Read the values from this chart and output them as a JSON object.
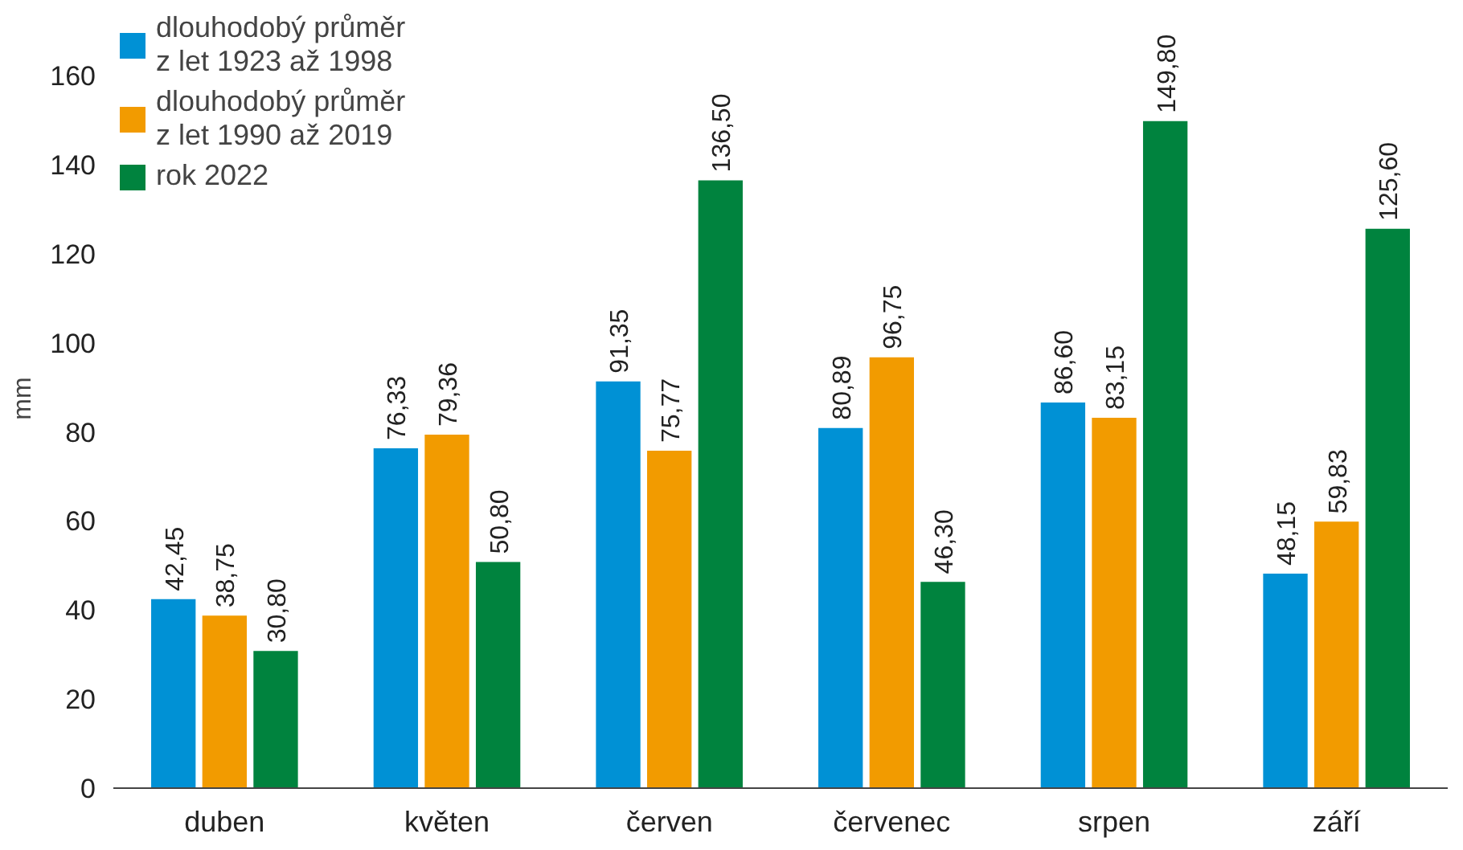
{
  "chart_data": {
    "type": "bar",
    "ylabel": "mm",
    "categories": [
      "duben",
      "květen",
      "červen",
      "červenec",
      "srpen",
      "září"
    ],
    "series": [
      {
        "name": "dlouhodobý průměr\nz let 1923 až 1998",
        "color": "#0091d5",
        "values": [
          42.45,
          76.33,
          91.35,
          80.89,
          86.6,
          48.15
        ],
        "value_labels": [
          "42,45",
          "76,33",
          "91,35",
          "80,89",
          "86,60",
          "48,15"
        ]
      },
      {
        "name": "dlouhodobý průměr\nz let 1990 až 2019",
        "color": "#f29b00",
        "values": [
          38.75,
          79.36,
          75.77,
          96.75,
          83.15,
          59.83
        ],
        "value_labels": [
          "38,75",
          "79,36",
          "75,77",
          "96,75",
          "83,15",
          "59,83"
        ]
      },
      {
        "name": "rok 2022",
        "color": "#00833e",
        "values": [
          30.8,
          50.8,
          136.5,
          46.3,
          149.8,
          125.6
        ],
        "value_labels": [
          "30,80",
          "50,80",
          "136,50",
          "46,30",
          "149,80",
          "125,60"
        ]
      }
    ],
    "ylim": [
      0,
      175
    ],
    "yticks": [
      0,
      20,
      40,
      60,
      80,
      100,
      120,
      140,
      160
    ],
    "grid": false,
    "legend": "top left"
  }
}
